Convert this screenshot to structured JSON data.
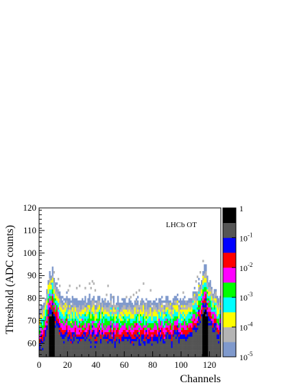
{
  "chart_data": {
    "type": "heatmap",
    "title": "",
    "xlabel": "Channels",
    "ylabel": "Threshold (ADC counts)",
    "annotation": "LHCb OT",
    "xlim": [
      0,
      128
    ],
    "ylim": [
      54,
      120
    ],
    "xticks": [
      "0",
      "20",
      "40",
      "60",
      "80",
      "100",
      "120"
    ],
    "yticks": [
      "60",
      "70",
      "80",
      "90",
      "100",
      "110",
      "120"
    ],
    "colorbar": {
      "scale": "log",
      "range": [
        1e-05,
        1
      ],
      "labels": [
        {
          "base": "1",
          "exp": "",
          "value": 1
        },
        {
          "base": "10",
          "exp": "-1",
          "value": 0.1
        },
        {
          "base": "10",
          "exp": "-2",
          "value": 0.01
        },
        {
          "base": "10",
          "exp": "-3",
          "value": 0.001
        },
        {
          "base": "10",
          "exp": "-4",
          "value": 0.0001
        },
        {
          "base": "10",
          "exp": "-5",
          "value": 1e-05
        }
      ],
      "colors": [
        "#7f99cc",
        "#b4b4b4",
        "#ffff00",
        "#00ffff",
        "#00ff00",
        "#ff00ff",
        "#ff0000",
        "#0000ff",
        "#555555",
        "#000000"
      ]
    },
    "profile": {
      "description_x": [
        0,
        3,
        6,
        8,
        9,
        10,
        12,
        16,
        22,
        30,
        40,
        60,
        80,
        95,
        105,
        110,
        113,
        116,
        117,
        118,
        120,
        124,
        128
      ],
      "top": [
        73,
        78,
        85,
        90,
        92,
        90,
        84,
        80,
        79,
        79,
        79,
        78,
        78,
        79,
        80,
        82,
        86,
        92,
        93,
        92,
        86,
        82,
        80
      ]
    }
  }
}
